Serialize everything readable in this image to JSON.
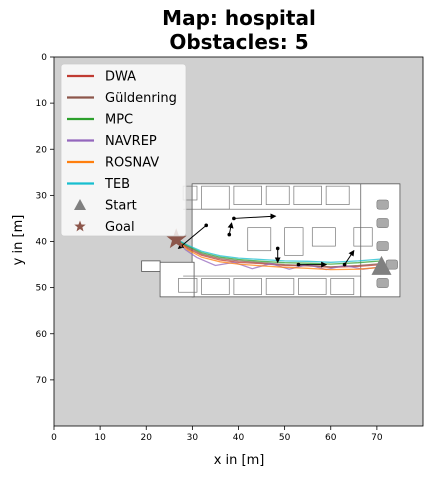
{
  "chart_data": {
    "type": "line",
    "title_line1": "Map: hospital",
    "title_line2": "Obstacles: 5",
    "xlabel": "x in [m]",
    "ylabel": "y in [m]",
    "xlim": [
      0,
      80
    ],
    "ylim": [
      80,
      0
    ],
    "y_inverted": true,
    "xticks": [
      "0",
      "10",
      "20",
      "30",
      "40",
      "50",
      "60",
      "70"
    ],
    "yticks": [
      "0",
      "10",
      "20",
      "30",
      "40",
      "50",
      "60",
      "70"
    ],
    "xtick_values": [
      0,
      10,
      20,
      30,
      40,
      50,
      60,
      70
    ],
    "ytick_values": [
      0,
      10,
      20,
      30,
      40,
      50,
      60,
      70
    ],
    "legend_position": "top-left",
    "background_color": "#d0d0d0",
    "map_extent": {
      "x": [
        23,
        75
      ],
      "y": [
        27.5,
        52
      ]
    },
    "series": [
      {
        "name": "DWA",
        "color": "#c03b32",
        "x": [
          71,
          66,
          60,
          55,
          50,
          45,
          40,
          36,
          32,
          29,
          26.5
        ],
        "y": [
          45,
          45.4,
          45.6,
          45.3,
          45.2,
          44.8,
          44.5,
          44,
          43,
          41.5,
          39.5
        ]
      },
      {
        "name": "Güldenring",
        "color": "#8c564b",
        "x": [
          71,
          66,
          60,
          55,
          50,
          45,
          40,
          36,
          32,
          29,
          26.5
        ],
        "y": [
          44.8,
          45.2,
          45.5,
          45.2,
          45,
          44.6,
          44.2,
          43.7,
          42.7,
          41.2,
          39.5
        ]
      },
      {
        "name": "MPC",
        "color": "#2ca02c",
        "x": [
          71,
          66,
          60,
          55,
          50,
          45,
          40,
          36,
          32,
          29,
          26.5
        ],
        "y": [
          44.2,
          44.6,
          44.9,
          44.7,
          44.6,
          44.3,
          43.9,
          43.4,
          42.4,
          41,
          39.5
        ]
      },
      {
        "name": "NAVREP",
        "color": "#9467bd",
        "x": [
          71,
          67,
          63,
          59,
          55,
          51,
          47,
          43,
          39,
          35,
          31,
          28.5,
          26.5
        ],
        "y": [
          45.5,
          46,
          45.2,
          46.1,
          45,
          46,
          44.8,
          45.9,
          44.5,
          45.2,
          43.5,
          41.8,
          39.5
        ]
      },
      {
        "name": "ROSNAV",
        "color": "#ff7f0e",
        "x": [
          71,
          66,
          60,
          55,
          50,
          45,
          40,
          36,
          32,
          29,
          26.5
        ],
        "y": [
          45.6,
          46,
          46.1,
          45.8,
          45.6,
          45.3,
          44.9,
          44.4,
          43.4,
          41.8,
          39.5
        ]
      },
      {
        "name": "TEB",
        "color": "#17becf",
        "x": [
          71,
          66,
          60,
          55,
          50,
          45,
          40,
          36,
          32,
          29,
          26.5
        ],
        "y": [
          43.8,
          44.2,
          44.5,
          44.3,
          44.2,
          43.9,
          43.6,
          43.1,
          42.1,
          40.8,
          39.5
        ]
      }
    ],
    "start": {
      "name": "Start",
      "x": 71,
      "y": 45.5,
      "color": "#808080"
    },
    "goal": {
      "name": "Goal",
      "x": 26.5,
      "y": 39.5,
      "color": "#8c564b"
    },
    "obstacle_tracks": [
      {
        "x": [
          39,
          48
        ],
        "y": [
          35,
          34.5
        ]
      },
      {
        "x": [
          38,
          38.5
        ],
        "y": [
          38.5,
          36
        ]
      },
      {
        "x": [
          33,
          27
        ],
        "y": [
          36.5,
          41.5
        ]
      },
      {
        "x": [
          48.5,
          48.5
        ],
        "y": [
          41.5,
          44.5
        ]
      },
      {
        "x": [
          53,
          59
        ],
        "y": [
          45,
          45
        ]
      },
      {
        "x": [
          63,
          65
        ],
        "y": [
          45,
          42
        ]
      }
    ]
  }
}
